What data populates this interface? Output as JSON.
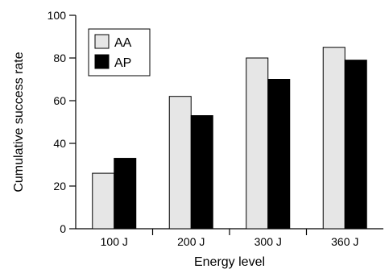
{
  "chart_data": {
    "type": "bar",
    "xlabel": "Energy level",
    "ylabel": "Cumulative success rate",
    "categories": [
      "100 J",
      "200 J",
      "300 J",
      "360 J"
    ],
    "ylim": [
      0,
      100
    ],
    "yticks": [
      0,
      20,
      40,
      60,
      80,
      100
    ],
    "grid": false,
    "legend_position": "top-left",
    "series": [
      {
        "name": "AA",
        "values": [
          26,
          62,
          80,
          85
        ],
        "color": "#e6e6e6"
      },
      {
        "name": "AP",
        "values": [
          33,
          53,
          70,
          79
        ],
        "color": "#000000"
      }
    ]
  }
}
